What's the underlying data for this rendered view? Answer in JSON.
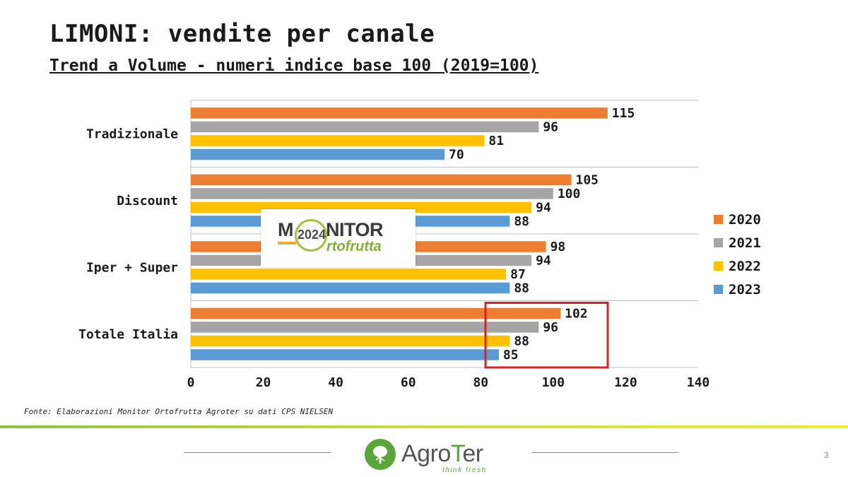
{
  "header": {
    "title": "LIMONI: vendite per canale",
    "subtitle": "Trend a Volume - numeri indice base 100 (2019=100)"
  },
  "chart_data": {
    "type": "bar",
    "orientation": "horizontal",
    "categories": [
      "Tradizionale",
      "Discount",
      "Iper + Super",
      "Totale Italia"
    ],
    "series": [
      {
        "name": "2020",
        "color": "#ED7D31",
        "values": [
          115,
          105,
          98,
          102
        ]
      },
      {
        "name": "2021",
        "color": "#A5A5A5",
        "values": [
          96,
          100,
          94,
          96
        ]
      },
      {
        "name": "2022",
        "color": "#FFC000",
        "values": [
          81,
          94,
          87,
          88
        ]
      },
      {
        "name": "2023",
        "color": "#5B9BD5",
        "values": [
          70,
          88,
          88,
          85
        ]
      }
    ],
    "xlim": [
      0,
      140
    ],
    "x_ticks": [
      0,
      20,
      40,
      60,
      80,
      100,
      120,
      140
    ],
    "legend_position": "right",
    "highlight": {
      "category": "Totale Italia",
      "color": "#E02020"
    }
  },
  "overlay_logo": {
    "monitor_left": "M",
    "monitor_right": "NITOR",
    "year": "2024",
    "ortofrutta": "rtofrutta",
    "colors": {
      "green": "#7CB32E",
      "orange": "#F0A830"
    }
  },
  "source": "Fonte: Elaborazioni Monitor Ortofrutta Agroter su dati CPS NIELSEN",
  "footer": {
    "brand_part1": "Agro",
    "brand_accent": "T",
    "brand_part2": "er",
    "tagline": "think fresh",
    "page_number": "3",
    "brand_color": "#5AA63A"
  }
}
